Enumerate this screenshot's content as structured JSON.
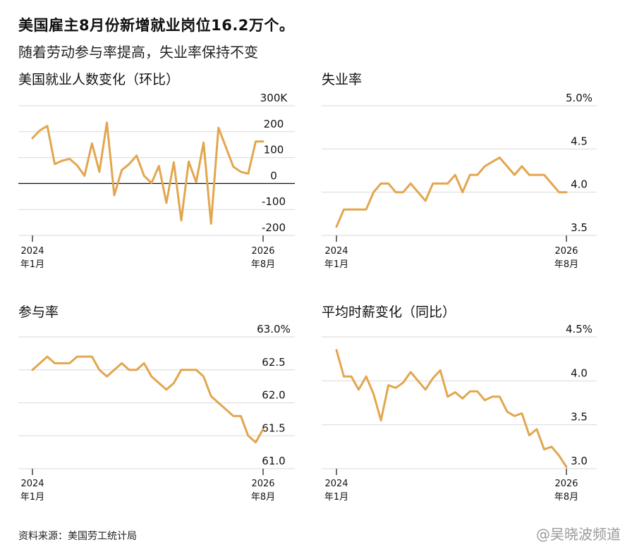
{
  "headline": "美国雇主8月份新增就业岗位16.2万个。",
  "subhead": "随着劳动参与率提高，失业率保持不变",
  "source": "资料来源：美国劳工统计局",
  "watermark": "@吴晓波频道",
  "line_color": "#E2A64E",
  "chart_data": [
    {
      "type": "line",
      "title": "美国就业人数变化（环比）",
      "yticks": [
        "300K",
        "200",
        "100",
        "0",
        "-100",
        "-200"
      ],
      "ylim": [
        -200,
        300
      ],
      "zero_line": true,
      "xticks": [
        {
          "year": "2024",
          "month": "年1月"
        },
        {
          "year": "2026",
          "month": "年8月"
        }
      ],
      "x": [
        0,
        1,
        2,
        3,
        4,
        5,
        6,
        7,
        8,
        9,
        10,
        11,
        12,
        13,
        14,
        15,
        16,
        17,
        18,
        19,
        20,
        21,
        22,
        23,
        24,
        25,
        26,
        27,
        28,
        29,
        30,
        31
      ],
      "values": [
        175,
        205,
        222,
        75,
        88,
        95,
        70,
        30,
        155,
        45,
        235,
        -45,
        52,
        75,
        108,
        30,
        2,
        68,
        -75,
        82,
        -142,
        85,
        5,
        158,
        -155,
        215,
        140,
        65,
        45,
        38,
        162,
        162
      ]
    },
    {
      "type": "line",
      "title": "失业率",
      "yticks": [
        "5.0%",
        "4.5",
        "4.0",
        "3.5"
      ],
      "ylim": [
        3.5,
        5.0
      ],
      "xticks": [
        {
          "year": "2024",
          "month": "年1月"
        },
        {
          "year": "2026",
          "month": "年8月"
        }
      ],
      "x": [
        0,
        1,
        2,
        3,
        4,
        5,
        6,
        7,
        8,
        9,
        10,
        11,
        12,
        13,
        14,
        15,
        16,
        17,
        18,
        19,
        20,
        21,
        22,
        23,
        24,
        25,
        26,
        27,
        28,
        29,
        30,
        31
      ],
      "values": [
        3.6,
        3.8,
        3.8,
        3.8,
        3.8,
        4.0,
        4.1,
        4.1,
        4.0,
        4.0,
        4.1,
        4.0,
        3.9,
        4.1,
        4.1,
        4.1,
        4.2,
        4.0,
        4.2,
        4.2,
        4.3,
        4.35,
        4.4,
        4.3,
        4.2,
        4.3,
        4.2,
        4.2,
        4.2,
        4.1,
        4.0,
        4.0
      ]
    },
    {
      "type": "line",
      "title": "参与率",
      "yticks": [
        "63.0%",
        "62.5",
        "62.0",
        "61.5",
        "61.0"
      ],
      "ylim": [
        61.0,
        63.0
      ],
      "xticks": [
        {
          "year": "2024",
          "month": "年1月"
        },
        {
          "year": "2026",
          "month": "年8月"
        }
      ],
      "x": [
        0,
        1,
        2,
        3,
        4,
        5,
        6,
        7,
        8,
        9,
        10,
        11,
        12,
        13,
        14,
        15,
        16,
        17,
        18,
        19,
        20,
        21,
        22,
        23,
        24,
        25,
        26,
        27,
        28,
        29,
        30,
        31
      ],
      "values": [
        62.5,
        62.6,
        62.7,
        62.6,
        62.6,
        62.6,
        62.7,
        62.7,
        62.7,
        62.5,
        62.4,
        62.5,
        62.6,
        62.5,
        62.5,
        62.6,
        62.4,
        62.3,
        62.2,
        62.3,
        62.5,
        62.5,
        62.5,
        62.4,
        62.1,
        62.0,
        61.9,
        61.8,
        61.8,
        61.5,
        61.4,
        61.6
      ]
    },
    {
      "type": "line",
      "title": "平均时薪变化（同比）",
      "yticks": [
        "4.5%",
        "4.0",
        "3.5",
        "3.0"
      ],
      "ylim": [
        3.0,
        4.5
      ],
      "xticks": [
        {
          "year": "2024",
          "month": "年1月"
        },
        {
          "year": "2026",
          "month": "年8月"
        }
      ],
      "x": [
        0,
        1,
        2,
        3,
        4,
        5,
        6,
        7,
        8,
        9,
        10,
        11,
        12,
        13,
        14,
        15,
        16,
        17,
        18,
        19,
        20,
        21,
        22,
        23,
        24,
        25,
        26,
        27,
        28,
        29,
        30,
        31
      ],
      "values": [
        4.35,
        4.05,
        4.05,
        3.9,
        4.05,
        3.85,
        3.55,
        3.95,
        3.92,
        3.98,
        4.1,
        4.0,
        3.9,
        4.03,
        4.12,
        3.82,
        3.87,
        3.8,
        3.88,
        3.88,
        3.78,
        3.82,
        3.82,
        3.65,
        3.6,
        3.63,
        3.38,
        3.45,
        3.22,
        3.25,
        3.15,
        3.02
      ]
    }
  ]
}
